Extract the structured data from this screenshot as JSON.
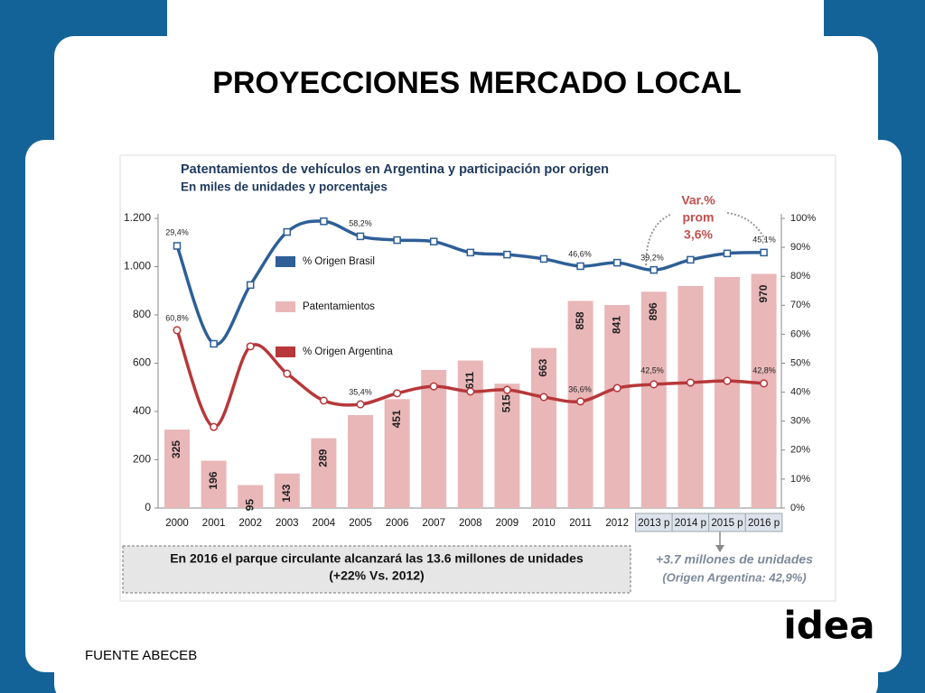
{
  "slide_title": "PROYECCIONES MERCADO LOCAL",
  "source": "FUENTE ABECEB",
  "logo": "idea",
  "chart_data": {
    "type": "bar_line",
    "title": "Patentamientos  de vehículos en Argentina  y participación  por origen",
    "subtitle": "En miles de unidades y porcentajes",
    "categories": [
      "2000",
      "2001",
      "2002",
      "2003",
      "2004",
      "2005",
      "2006",
      "2007",
      "2008",
      "2009",
      "2010",
      "2011",
      "2012",
      "2013 p",
      "2014 p",
      "2015 p",
      "2016 p"
    ],
    "series": [
      {
        "name": "% Origen Brasil",
        "color": "#2e5f97",
        "axis": "y2",
        "kind": "line",
        "marker": "square",
        "values": [
          90.5,
          56.7,
          77,
          95.3,
          99,
          93.8,
          92.5,
          92,
          88.2,
          87.5,
          86,
          83.5,
          84.7,
          82.2,
          85.7,
          87.9,
          88.2
        ]
      },
      {
        "name": "Patentamientos",
        "color": "#e9b7b8",
        "kind": "bar",
        "values": [
          325,
          196,
          95,
          143,
          289,
          385,
          451,
          572,
          611,
          515,
          663,
          858,
          841,
          896,
          920,
          957,
          970
        ],
        "value_labels": [
          "325",
          "196",
          "95",
          "143",
          "289",
          null,
          "451",
          null,
          "611",
          "515",
          "663",
          "858",
          "841",
          "896",
          null,
          null,
          "970"
        ]
      },
      {
        "name": "% Origen  Argentina",
        "color": "#b7373a",
        "axis": "y2",
        "kind": "line",
        "marker": "circle",
        "values": [
          61.4,
          28,
          55.8,
          46.4,
          37.1,
          35.8,
          39.6,
          42,
          40.2,
          40.8,
          38.3,
          36.8,
          41.4,
          42.7,
          43.3,
          43.9,
          43
        ]
      }
    ],
    "ylim": [
      0,
      1200
    ],
    "yticks": [
      0,
      200,
      400,
      600,
      800,
      {
        "value": 1000,
        "label": "1.000"
      },
      {
        "value": 1200,
        "label": "1.200"
      }
    ],
    "y2lim": [
      0,
      100
    ],
    "y2ticks": [
      {
        "value": 0,
        "label": "0%"
      },
      {
        "value": 10,
        "label": "10%"
      },
      {
        "value": 20,
        "label": "20%"
      },
      {
        "value": 30,
        "label": "30%"
      },
      {
        "value": 40,
        "label": "40%"
      },
      {
        "value": 50,
        "label": "50%"
      },
      {
        "value": 60,
        "label": "60%"
      },
      {
        "value": 70,
        "label": "70%"
      },
      {
        "value": 80,
        "label": "80%"
      },
      {
        "value": 90,
        "label": "90%"
      },
      {
        "value": 100,
        "label": "100%"
      }
    ],
    "annotations": [
      "29,4%",
      "58,2%",
      "46,6%",
      "39,2%",
      "45,1%",
      "60,8%",
      "35,4%",
      "36,6%",
      "42,5%",
      "42,8%"
    ],
    "callout": [
      "Var.%",
      "prom",
      "3,6%"
    ],
    "note": [
      "En 2016 el parque circulante alcanzará las 13.6 millones de unidades",
      "(+22% Vs. 2012)"
    ],
    "side_note": [
      "+3.7 millones de unidades",
      "(Origen Argentina: 42,9%)"
    ]
  }
}
